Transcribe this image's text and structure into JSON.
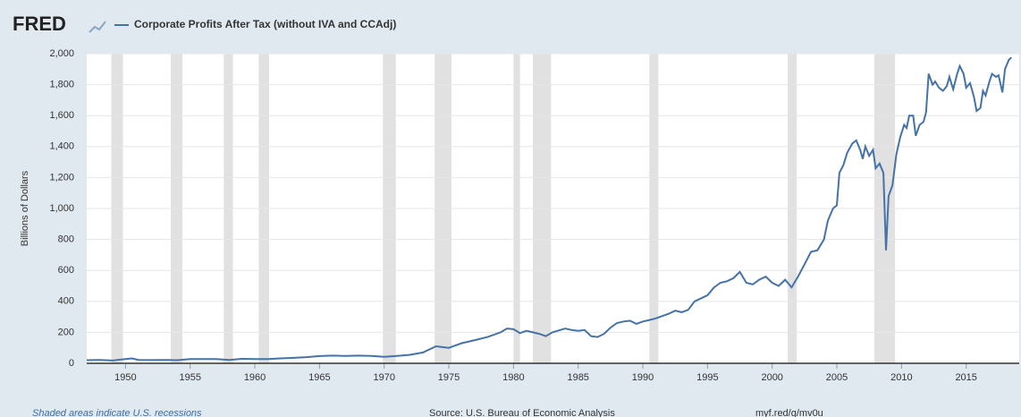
{
  "logo": "FRED",
  "footer": {
    "note": "Shaded areas indicate U.S. recessions",
    "source": "Source: U.S. Bureau of Economic Analysis",
    "link": "myf.red/g/mv0u"
  },
  "chart_data": {
    "type": "line",
    "y_label": "Billions of Dollars",
    "xlim": [
      1947,
      2019.1
    ],
    "xticks": [
      1950,
      1955,
      1960,
      1965,
      1970,
      1975,
      1980,
      1985,
      1990,
      1995,
      2000,
      2005,
      2010,
      2015
    ],
    "ylim": [
      0,
      2000
    ],
    "yticks": [
      0,
      200,
      400,
      600,
      800,
      {
        "value": 1000,
        "label": "1,000"
      },
      {
        "value": 1200,
        "label": "1,200"
      },
      {
        "value": 1400,
        "label": "1,400"
      },
      {
        "value": 1600,
        "label": "1,600"
      },
      {
        "value": 1800,
        "label": "1,800"
      },
      {
        "value": 2000,
        "label": "2,000"
      }
    ],
    "grid": true,
    "recessions": [
      [
        1948.9,
        1949.8
      ],
      [
        1953.5,
        1954.4
      ],
      [
        1957.6,
        1958.3
      ],
      [
        1960.3,
        1961.1
      ],
      [
        1969.9,
        1970.9
      ],
      [
        1973.9,
        1975.2
      ],
      [
        1980.0,
        1980.5
      ],
      [
        1981.5,
        1982.9
      ],
      [
        1990.5,
        1991.2
      ],
      [
        2001.2,
        2001.9
      ],
      [
        2007.9,
        2009.5
      ]
    ],
    "recession_color": "#e1e1e1",
    "series": [
      {
        "name": "Corporate Profits After Tax (without IVA and CCAdj)",
        "color": "#4572a7",
        "x": [
          1947,
          1948,
          1949,
          1950,
          1950.5,
          1951,
          1952,
          1953,
          1954,
          1955,
          1956,
          1957,
          1958,
          1959,
          1960,
          1961,
          1962,
          1963,
          1964,
          1965,
          1966,
          1967,
          1968,
          1969,
          1970,
          1971,
          1972,
          1973,
          1974,
          1975,
          1976,
          1977,
          1978,
          1979,
          1979.5,
          1980,
          1980.5,
          1981,
          1981.5,
          1982,
          1982.5,
          1983,
          1984,
          1984.5,
          1985,
          1985.5,
          1986,
          1986.5,
          1987,
          1987.5,
          1988,
          1988.5,
          1989,
          1989.5,
          1990,
          1990.5,
          1991,
          1992,
          1992.5,
          1993,
          1993.5,
          1994,
          1995,
          1995.5,
          1996,
          1996.5,
          1997,
          1997.5,
          1998,
          1998.5,
          1999,
          1999.5,
          2000,
          2000.5,
          2001,
          2001.5,
          2002,
          2002.5,
          2003,
          2003.5,
          2004,
          2004.3,
          2004.7,
          2005,
          2005.2,
          2005.5,
          2005.8,
          2006.2,
          2006.5,
          2006.8,
          2007,
          2007.2,
          2007.5,
          2007.8,
          2008,
          2008.3,
          2008.6,
          2008.8,
          2009,
          2009.3,
          2009.6,
          2009.9,
          2010.2,
          2010.4,
          2010.6,
          2010.9,
          2011.1,
          2011.4,
          2011.7,
          2011.9,
          2012.1,
          2012.4,
          2012.6,
          2012.9,
          2013.2,
          2013.5,
          2013.7,
          2014,
          2014.3,
          2014.5,
          2014.8,
          2015,
          2015.3,
          2015.6,
          2015.8,
          2016.1,
          2016.3,
          2016.5,
          2016.8,
          2017,
          2017.3,
          2017.5,
          2017.8,
          2018,
          2018.3,
          2018.5
        ],
        "values": [
          20,
          22,
          18,
          27,
          32,
          22,
          21,
          22,
          20,
          27,
          27,
          27,
          22,
          29,
          27,
          27,
          32,
          35,
          40,
          47,
          50,
          48,
          50,
          48,
          42,
          48,
          55,
          70,
          110,
          100,
          130,
          150,
          170,
          200,
          225,
          220,
          195,
          210,
          200,
          190,
          175,
          200,
          225,
          215,
          210,
          215,
          175,
          170,
          190,
          230,
          260,
          270,
          275,
          255,
          270,
          280,
          290,
          320,
          340,
          330,
          345,
          400,
          440,
          490,
          520,
          530,
          550,
          590,
          520,
          510,
          540,
          560,
          520,
          500,
          540,
          490,
          560,
          640,
          720,
          730,
          800,
          920,
          1000,
          1020,
          1230,
          1280,
          1360,
          1420,
          1440,
          1380,
          1320,
          1400,
          1340,
          1380,
          1260,
          1290,
          1230,
          730,
          1080,
          1150,
          1350,
          1460,
          1540,
          1520,
          1600,
          1600,
          1470,
          1540,
          1560,
          1620,
          1870,
          1800,
          1820,
          1780,
          1760,
          1790,
          1850,
          1770,
          1870,
          1920,
          1870,
          1780,
          1810,
          1720,
          1630,
          1650,
          1760,
          1730,
          1820,
          1870,
          1850,
          1860,
          1750,
          1900,
          1960,
          1975
        ]
      }
    ]
  }
}
